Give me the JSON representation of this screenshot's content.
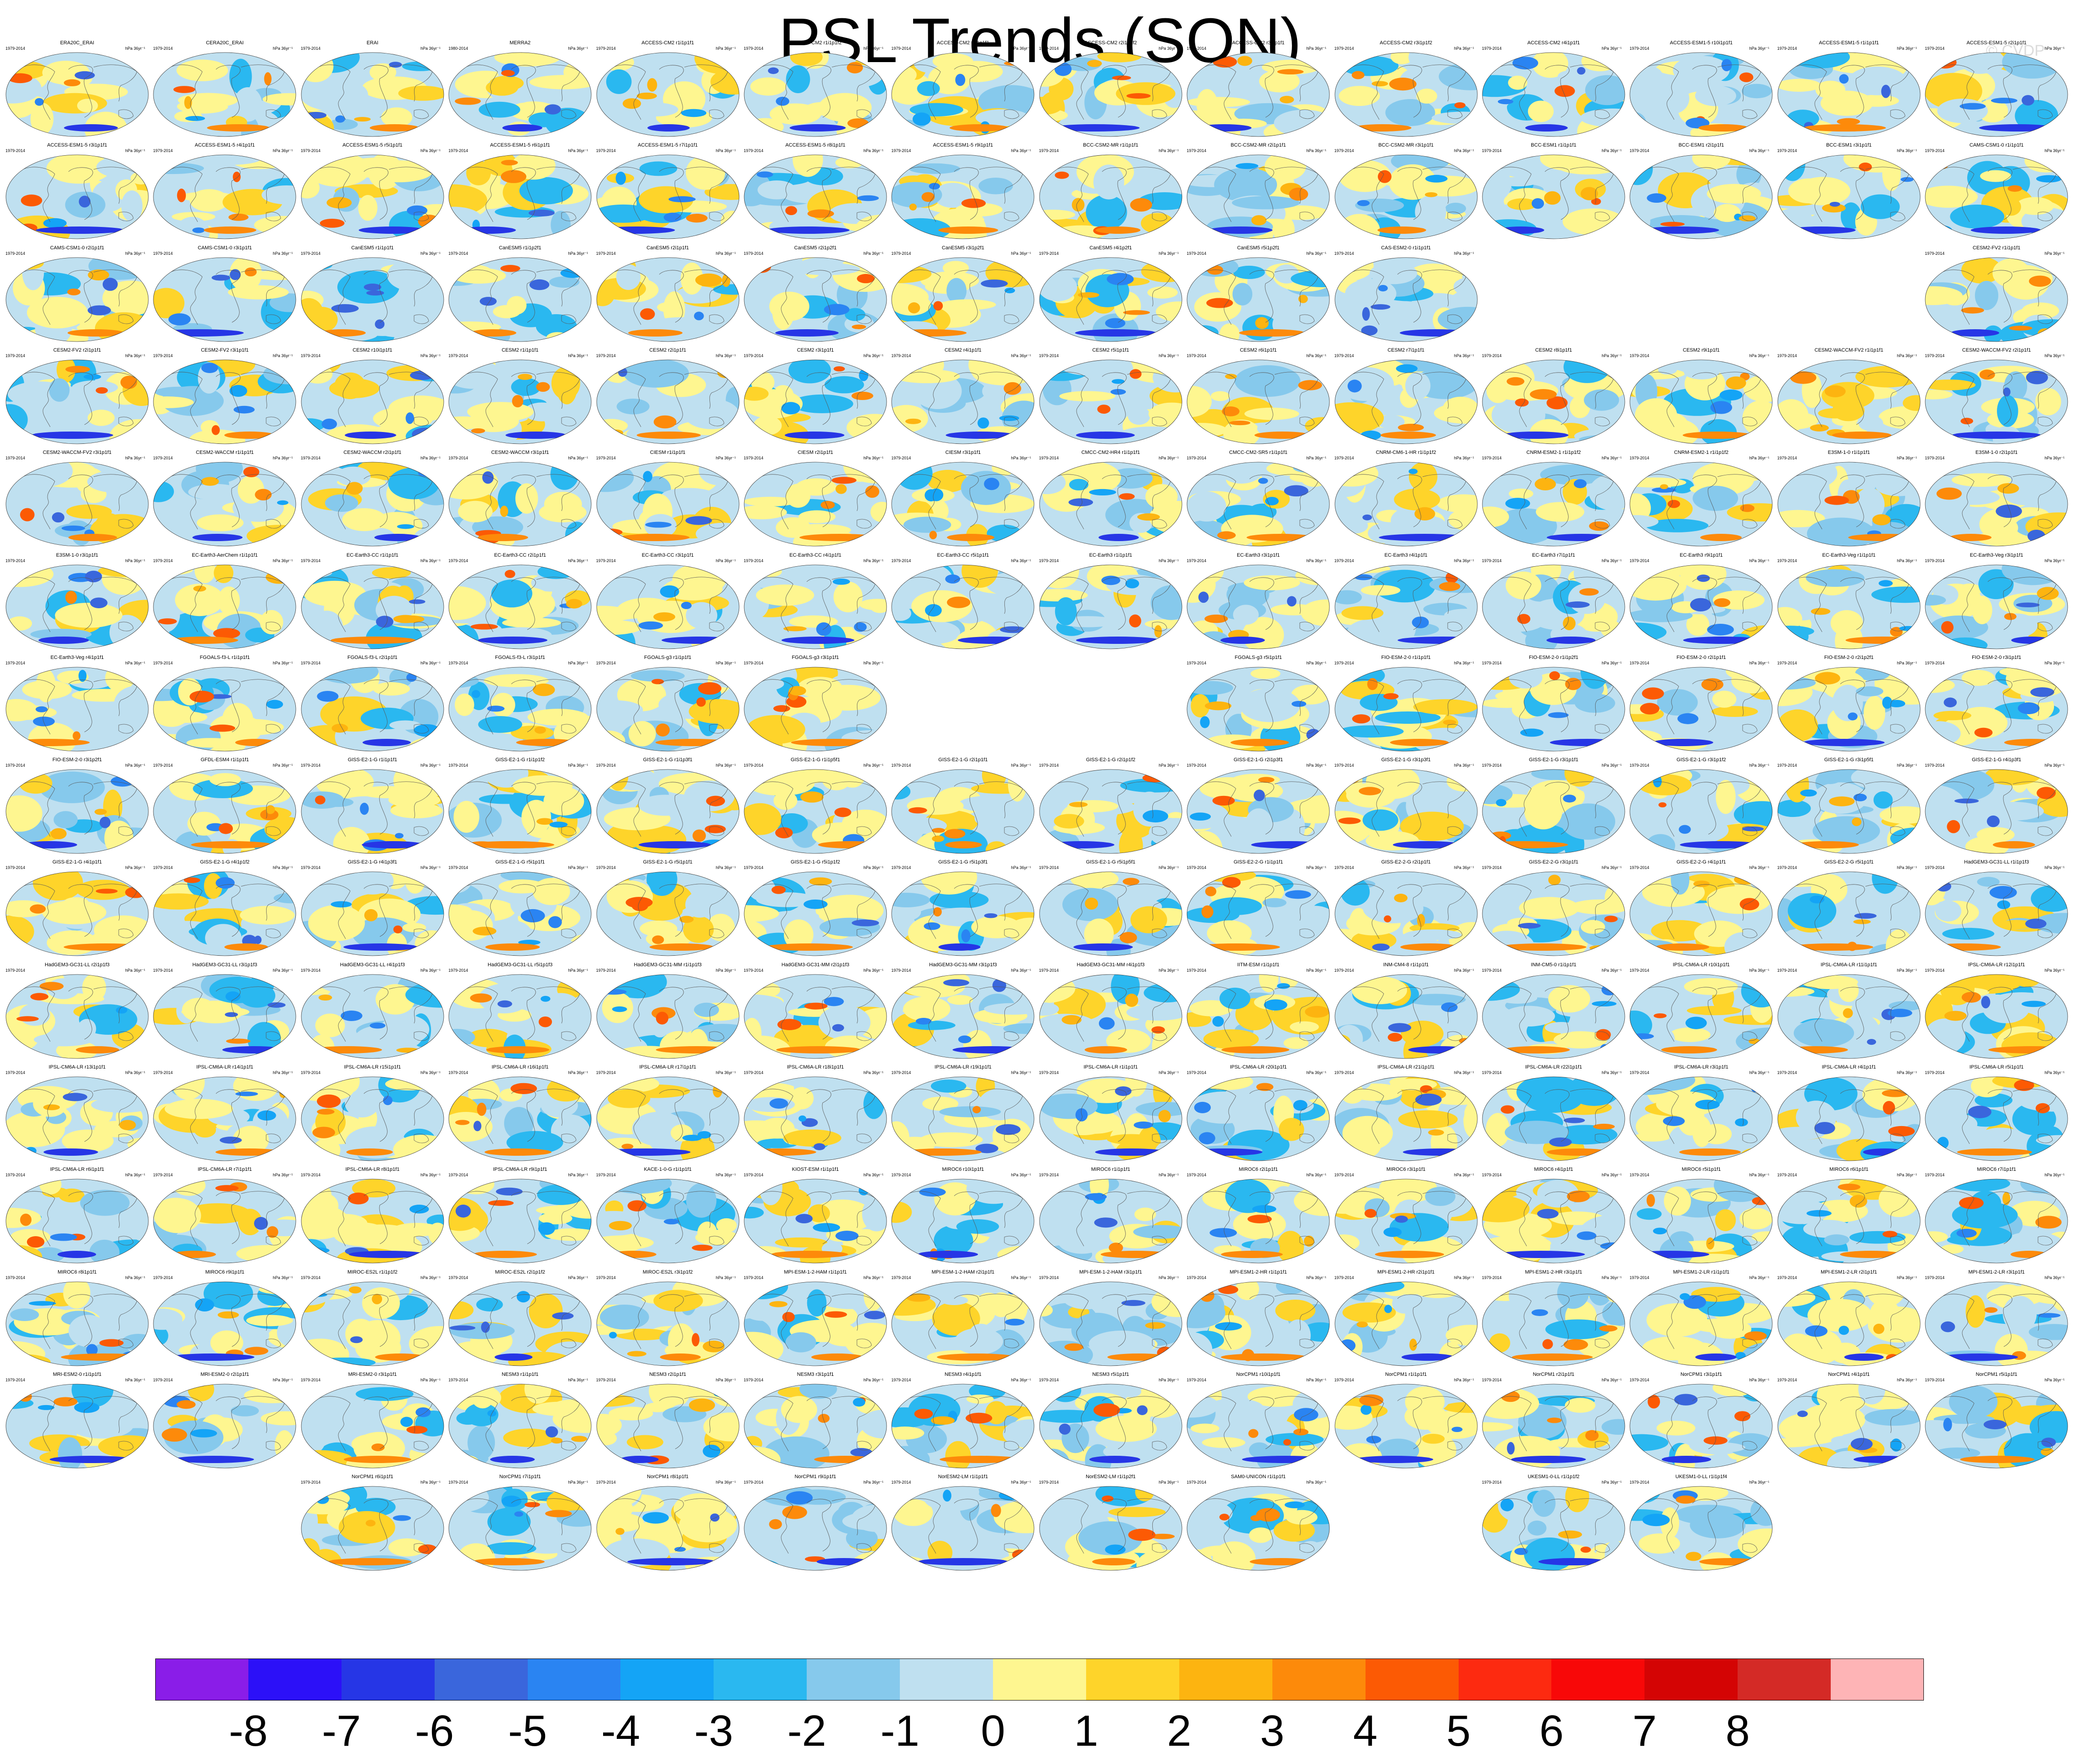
{
  "title": "PSL Trends (SON)",
  "watermark": "© CVDP",
  "units": "hPa 36yr⁻¹",
  "panel_rows": [
    [
      {
        "name": "ERA20C_ERAI",
        "years": "1979-2014"
      },
      {
        "name": "CERA20C_ERAI",
        "years": "1979-2014"
      },
      {
        "name": "ERAI",
        "years": "1979-2014"
      },
      {
        "name": "MERRA2",
        "years": "1980-2014"
      },
      {
        "name": "ACCESS-CM2 r1i1p1f1",
        "years": "1979-2014"
      },
      {
        "name": "ACCESS-CM2 r1i1p1f2",
        "years": "1979-2014"
      },
      {
        "name": "ACCESS-CM2 r2i1p1f1",
        "years": "1979-2014"
      },
      {
        "name": "ACCESS-CM2 r2i1p1f2",
        "years": "1979-2014"
      },
      {
        "name": "ACCESS-CM2 r3i1p1f1",
        "years": "1979-2014"
      },
      {
        "name": "ACCESS-CM2 r3i1p1f2",
        "years": "1979-2014"
      },
      {
        "name": "ACCESS-CM2 r4i1p1f1",
        "years": "1979-2014"
      },
      {
        "name": "ACCESS-ESM1-5 r10i1p1f1",
        "years": "1979-2014"
      },
      {
        "name": "ACCESS-ESM1-5 r1i1p1f1",
        "years": "1979-2014"
      },
      {
        "name": "ACCESS-ESM1-5 r2i1p1f1",
        "years": "1979-2014"
      }
    ],
    [
      {
        "name": "ACCESS-ESM1-5 r3i1p1f1",
        "years": "1979-2014"
      },
      {
        "name": "ACCESS-ESM1-5 r4i1p1f1",
        "years": "1979-2014"
      },
      {
        "name": "ACCESS-ESM1-5 r5i1p1f1",
        "years": "1979-2014"
      },
      {
        "name": "ACCESS-ESM1-5 r6i1p1f1",
        "years": "1979-2014"
      },
      {
        "name": "ACCESS-ESM1-5 r7i1p1f1",
        "years": "1979-2014"
      },
      {
        "name": "ACCESS-ESM1-5 r8i1p1f1",
        "years": "1979-2014"
      },
      {
        "name": "ACCESS-ESM1-5 r9i1p1f1",
        "years": "1979-2014"
      },
      {
        "name": "BCC-CSM2-MR r1i1p1f1",
        "years": "1979-2014"
      },
      {
        "name": "BCC-CSM2-MR r2i1p1f1",
        "years": "1979-2014"
      },
      {
        "name": "BCC-CSM2-MR r3i1p1f1",
        "years": "1979-2014"
      },
      {
        "name": "BCC-ESM1 r1i1p1f1",
        "years": "1979-2014"
      },
      {
        "name": "BCC-ESM1 r2i1p1f1",
        "years": "1979-2014"
      },
      {
        "name": "BCC-ESM1 r3i1p1f1",
        "years": "1979-2014"
      },
      {
        "name": "CAMS-CSM1-0 r1i1p1f1",
        "years": "1979-2014"
      }
    ],
    [
      {
        "name": "CAMS-CSM1-0 r2i1p1f1",
        "years": "1979-2014"
      },
      {
        "name": "CAMS-CSM1-0 r3i1p1f1",
        "years": "1979-2014"
      },
      {
        "name": "CanESM5 r1i1p1f1",
        "years": "1979-2014"
      },
      {
        "name": "CanESM5 r1i1p2f1",
        "years": "1979-2014"
      },
      {
        "name": "CanESM5 r2i1p1f1",
        "years": "1979-2014"
      },
      {
        "name": "CanESM5 r2i1p2f1",
        "years": "1979-2014"
      },
      {
        "name": "CanESM5 r3i1p2f1",
        "years": "1979-2014"
      },
      {
        "name": "CanESM5 r4i1p2f1",
        "years": "1979-2014"
      },
      {
        "name": "CanESM5 r5i1p2f1",
        "years": "1979-2014"
      },
      {
        "name": "CAS-ESM2-0 r1i1p1f1",
        "years": "1979-2014"
      },
      null,
      null,
      null,
      {
        "name": "CESM2-FV2 r1i1p1f1",
        "years": "1979-2014"
      }
    ],
    [
      {
        "name": "CESM2-FV2 r2i1p1f1",
        "years": "1979-2014"
      },
      {
        "name": "CESM2-FV2 r3i1p1f1",
        "years": "1979-2014"
      },
      {
        "name": "CESM2 r10i1p1f1",
        "years": "1979-2014"
      },
      {
        "name": "CESM2 r1i1p1f1",
        "years": "1979-2014"
      },
      {
        "name": "CESM2 r2i1p1f1",
        "years": "1979-2014"
      },
      {
        "name": "CESM2 r3i1p1f1",
        "years": "1979-2014"
      },
      {
        "name": "CESM2 r4i1p1f1",
        "years": "1979-2014"
      },
      {
        "name": "CESM2 r5i1p1f1",
        "years": "1979-2014"
      },
      {
        "name": "CESM2 r6i1p1f1",
        "years": "1979-2014"
      },
      {
        "name": "CESM2 r7i1p1f1",
        "years": "1979-2014"
      },
      {
        "name": "CESM2 r8i1p1f1",
        "years": "1979-2014"
      },
      {
        "name": "CESM2 r9i1p1f1",
        "years": "1979-2014"
      },
      {
        "name": "CESM2-WACCM-FV2 r1i1p1f1",
        "years": "1979-2014"
      },
      {
        "name": "CESM2-WACCM-FV2 r2i1p1f1",
        "years": "1979-2014"
      }
    ],
    [
      {
        "name": "CESM2-WACCM-FV2 r3i1p1f1",
        "years": "1979-2014"
      },
      {
        "name": "CESM2-WACCM r1i1p1f1",
        "years": "1979-2014"
      },
      {
        "name": "CESM2-WACCM r2i1p1f1",
        "years": "1979-2014"
      },
      {
        "name": "CESM2-WACCM r3i1p1f1",
        "years": "1979-2014"
      },
      {
        "name": "CIESM r1i1p1f1",
        "years": "1979-2014"
      },
      {
        "name": "CIESM r2i1p1f1",
        "years": "1979-2014"
      },
      {
        "name": "CIESM r3i1p1f1",
        "years": "1979-2014"
      },
      {
        "name": "CMCC-CM2-HR4 r1i1p1f1",
        "years": "1979-2014"
      },
      {
        "name": "CMCC-CM2-SR5 r1i1p1f1",
        "years": "1979-2014"
      },
      {
        "name": "CNRM-CM6-1-HR r1i1p1f2",
        "years": "1979-2014"
      },
      {
        "name": "CNRM-ESM2-1 r1i1p1f2",
        "years": "1979-2014"
      },
      {
        "name": "CNRM-ESM2-1 r1i1p1f2",
        "years": "1979-2014"
      },
      {
        "name": "E3SM-1-0 r1i1p1f1",
        "years": "1979-2014"
      },
      {
        "name": "E3SM-1-0 r2i1p1f1",
        "years": "1979-2014"
      }
    ],
    [
      {
        "name": "E3SM-1-0 r3i1p1f1",
        "years": "1979-2014"
      },
      {
        "name": "EC-Earth3-AerChem r1i1p1f1",
        "years": "1979-2014"
      },
      {
        "name": "EC-Earth3-CC r1i1p1f1",
        "years": "1979-2014"
      },
      {
        "name": "EC-Earth3-CC r2i1p1f1",
        "years": "1979-2014"
      },
      {
        "name": "EC-Earth3-CC r3i1p1f1",
        "years": "1979-2014"
      },
      {
        "name": "EC-Earth3-CC r4i1p1f1",
        "years": "1979-2014"
      },
      {
        "name": "EC-Earth3-CC r5i1p1f1",
        "years": "1979-2014"
      },
      {
        "name": "EC-Earth3 r1i1p1f1",
        "years": "1979-2014"
      },
      {
        "name": "EC-Earth3 r3i1p1f1",
        "years": "1979-2014"
      },
      {
        "name": "EC-Earth3 r4i1p1f1",
        "years": "1979-2014"
      },
      {
        "name": "EC-Earth3 r7i1p1f1",
        "years": "1979-2014"
      },
      {
        "name": "EC-Earth3 r9i1p1f1",
        "years": "1979-2014"
      },
      {
        "name": "EC-Earth3-Veg r1i1p1f1",
        "years": "1979-2014"
      },
      {
        "name": "EC-Earth3-Veg r3i1p1f1",
        "years": "1979-2014"
      }
    ],
    [
      {
        "name": "EC-Earth3-Veg r4i1p1f1",
        "years": "1979-2014"
      },
      {
        "name": "FGOALS-f3-L r1i1p1f1",
        "years": "1979-2014"
      },
      {
        "name": "FGOALS-f3-L r2i1p1f1",
        "years": "1979-2014"
      },
      {
        "name": "FGOALS-f3-L r3i1p1f1",
        "years": "1979-2014"
      },
      {
        "name": "FGOALS-g3 r1i1p1f1",
        "years": "1979-2014"
      },
      {
        "name": "FGOALS-g3 r3i1p1f1",
        "years": "1979-2014"
      },
      null,
      null,
      {
        "name": "FGOALS-g3 r5i1p1f1",
        "years": "1979-2014"
      },
      {
        "name": "FIO-ESM-2-0 r1i1p1f1",
        "years": "1979-2014"
      },
      {
        "name": "FIO-ESM-2-0 r1i1p2f1",
        "years": "1979-2014"
      },
      {
        "name": "FIO-ESM-2-0 r2i1p1f1",
        "years": "1979-2014"
      },
      {
        "name": "FIO-ESM-2-0 r2i1p2f1",
        "years": "1979-2014"
      },
      {
        "name": "FIO-ESM-2-0 r3i1p1f1",
        "years": "1979-2014"
      }
    ],
    [
      {
        "name": "FIO-ESM-2-0 r3i1p2f1",
        "years": "1979-2014"
      },
      {
        "name": "GFDL-ESM4 r1i1p1f1",
        "years": "1979-2014"
      },
      {
        "name": "GISS-E2-1-G r1i1p1f1",
        "years": "1979-2014"
      },
      {
        "name": "GISS-E2-1-G r1i1p1f2",
        "years": "1979-2014"
      },
      {
        "name": "GISS-E2-1-G r1i1p3f1",
        "years": "1979-2014"
      },
      {
        "name": "GISS-E2-1-G r1i1p5f1",
        "years": "1979-2014"
      },
      {
        "name": "GISS-E2-1-G r2i1p1f1",
        "years": "1979-2014"
      },
      {
        "name": "GISS-E2-1-G r2i1p1f2",
        "years": "1979-2014"
      },
      {
        "name": "GISS-E2-1-G r2i1p3f1",
        "years": "1979-2014"
      },
      {
        "name": "GISS-E2-1-G r3i1p3f1",
        "years": "1979-2014"
      },
      {
        "name": "GISS-E2-1-G r3i1p1f1",
        "years": "1979-2014"
      },
      {
        "name": "GISS-E2-1-G r3i1p1f2",
        "years": "1979-2014"
      },
      {
        "name": "GISS-E2-1-G r3i1p5f1",
        "years": "1979-2014"
      },
      {
        "name": "GISS-E2-1-G r4i1p3f1",
        "years": "1979-2014"
      }
    ],
    [
      {
        "name": "GISS-E2-1-G r4i1p1f1",
        "years": "1979-2014"
      },
      {
        "name": "GISS-E2-1-G r4i1p1f2",
        "years": "1979-2014"
      },
      {
        "name": "GISS-E2-1-G r4i1p3f1",
        "years": "1979-2014"
      },
      {
        "name": "GISS-E2-1-G r5i1p1f1",
        "years": "1979-2014"
      },
      {
        "name": "GISS-E2-1-G r5i1p1f1",
        "years": "1979-2014"
      },
      {
        "name": "GISS-E2-1-G r5i1p1f2",
        "years": "1979-2014"
      },
      {
        "name": "GISS-E2-1-G r5i1p3f1",
        "years": "1979-2014"
      },
      {
        "name": "GISS-E2-1-G r5i1p5f1",
        "years": "1979-2014"
      },
      {
        "name": "GISS-E2-2-G r1i1p1f1",
        "years": "1979-2014"
      },
      {
        "name": "GISS-E2-2-G r2i1p1f1",
        "years": "1979-2014"
      },
      {
        "name": "GISS-E2-2-G r3i1p1f1",
        "years": "1979-2014"
      },
      {
        "name": "GISS-E2-2-G r4i1p1f1",
        "years": "1979-2014"
      },
      {
        "name": "GISS-E2-2-G r5i1p1f1",
        "years": "1979-2014"
      },
      {
        "name": "HadGEM3-GC31-LL r1i1p1f3",
        "years": "1979-2014"
      }
    ],
    [
      {
        "name": "HadGEM3-GC31-LL r2i1p1f3",
        "years": "1979-2014"
      },
      {
        "name": "HadGEM3-GC31-LL r3i1p1f3",
        "years": "1979-2014"
      },
      {
        "name": "HadGEM3-GC31-LL r4i1p1f3",
        "years": "1979-2014"
      },
      {
        "name": "HadGEM3-GC31-LL r5i1p1f3",
        "years": "1979-2014"
      },
      {
        "name": "HadGEM3-GC31-MM r1i1p1f3",
        "years": "1979-2014"
      },
      {
        "name": "HadGEM3-GC31-MM r2i1p1f3",
        "years": "1979-2014"
      },
      {
        "name": "HadGEM3-GC31-MM r3i1p1f3",
        "years": "1979-2014"
      },
      {
        "name": "HadGEM3-GC31-MM r4i1p1f3",
        "years": "1979-2014"
      },
      {
        "name": "IITM-ESM r1i1p1f1",
        "years": "1979-2014"
      },
      {
        "name": "INM-CM4-8 r1i1p1f1",
        "years": "1979-2014"
      },
      {
        "name": "INM-CM5-0 r1i1p1f1",
        "years": "1979-2014"
      },
      {
        "name": "IPSL-CM6A-LR r10i1p1f1",
        "years": "1979-2014"
      },
      {
        "name": "IPSL-CM6A-LR r11i1p1f1",
        "years": "1979-2014"
      },
      {
        "name": "IPSL-CM6A-LR r12i1p1f1",
        "years": "1979-2014"
      }
    ],
    [
      {
        "name": "IPSL-CM6A-LR r13i1p1f1",
        "years": "1979-2014"
      },
      {
        "name": "IPSL-CM6A-LR r14i1p1f1",
        "years": "1979-2014"
      },
      {
        "name": "IPSL-CM6A-LR r15i1p1f1",
        "years": "1979-2014"
      },
      {
        "name": "IPSL-CM6A-LR r16i1p1f1",
        "years": "1979-2014"
      },
      {
        "name": "IPSL-CM6A-LR r17i1p1f1",
        "years": "1979-2014"
      },
      {
        "name": "IPSL-CM6A-LR r18i1p1f1",
        "years": "1979-2014"
      },
      {
        "name": "IPSL-CM6A-LR r19i1p1f1",
        "years": "1979-2014"
      },
      {
        "name": "IPSL-CM6A-LR r1i1p1f1",
        "years": "1979-2014"
      },
      {
        "name": "IPSL-CM6A-LR r20i1p1f1",
        "years": "1979-2014"
      },
      {
        "name": "IPSL-CM6A-LR r21i1p1f1",
        "years": "1979-2014"
      },
      {
        "name": "IPSL-CM6A-LR r22i1p1f1",
        "years": "1979-2014"
      },
      {
        "name": "IPSL-CM6A-LR r3i1p1f1",
        "years": "1979-2014"
      },
      {
        "name": "IPSL-CM6A-LR r4i1p1f1",
        "years": "1979-2014"
      },
      {
        "name": "IPSL-CM6A-LR r5i1p1f1",
        "years": "1979-2014"
      }
    ],
    [
      {
        "name": "IPSL-CM6A-LR r6i1p1f1",
        "years": "1979-2014"
      },
      {
        "name": "IPSL-CM6A-LR r7i1p1f1",
        "years": "1979-2014"
      },
      {
        "name": "IPSL-CM6A-LR r8i1p1f1",
        "years": "1979-2014"
      },
      {
        "name": "IPSL-CM6A-LR r9i1p1f1",
        "years": "1979-2014"
      },
      {
        "name": "KACE-1-0-G r1i1p1f1",
        "years": "1979-2014"
      },
      {
        "name": "KIOST-ESM r1i1p1f1",
        "years": "1979-2014"
      },
      {
        "name": "MIROC6 r10i1p1f1",
        "years": "1979-2014"
      },
      {
        "name": "MIROC6 r1i1p1f1",
        "years": "1979-2014"
      },
      {
        "name": "MIROC6 r2i1p1f1",
        "years": "1979-2014"
      },
      {
        "name": "MIROC6 r3i1p1f1",
        "years": "1979-2014"
      },
      {
        "name": "MIROC6 r4i1p1f1",
        "years": "1979-2014"
      },
      {
        "name": "MIROC6 r5i1p1f1",
        "years": "1979-2014"
      },
      {
        "name": "MIROC6 r6i1p1f1",
        "years": "1979-2014"
      },
      {
        "name": "MIROC6 r7i1p1f1",
        "years": "1979-2014"
      }
    ],
    [
      {
        "name": "MIROC6 r8i1p1f1",
        "years": "1979-2014"
      },
      {
        "name": "MIROC6 r9i1p1f1",
        "years": "1979-2014"
      },
      {
        "name": "MIROC-ES2L r1i1p1f2",
        "years": "1979-2014"
      },
      {
        "name": "MIROC-ES2L r2i1p1f2",
        "years": "1979-2014"
      },
      {
        "name": "MIROC-ES2L r3i1p1f2",
        "years": "1979-2014"
      },
      {
        "name": "MPI-ESM-1-2-HAM r1i1p1f1",
        "years": "1979-2014"
      },
      {
        "name": "MPI-ESM-1-2-HAM r2i1p1f1",
        "years": "1979-2014"
      },
      {
        "name": "MPI-ESM-1-2-HAM r3i1p1f1",
        "years": "1979-2014"
      },
      {
        "name": "MPI-ESM1-2-HR r1i1p1f1",
        "years": "1979-2014"
      },
      {
        "name": "MPI-ESM1-2-HR r2i1p1f1",
        "years": "1979-2014"
      },
      {
        "name": "MPI-ESM1-2-HR r3i1p1f1",
        "years": "1979-2014"
      },
      {
        "name": "MPI-ESM1-2-LR r1i1p1f1",
        "years": "1979-2014"
      },
      {
        "name": "MPI-ESM1-2-LR r2i1p1f1",
        "years": "1979-2014"
      },
      {
        "name": "MPI-ESM1-2-LR r3i1p1f1",
        "years": "1979-2014"
      }
    ],
    [
      {
        "name": "MRI-ESM2-0 r1i1p1f1",
        "years": "1979-2014"
      },
      {
        "name": "MRI-ESM2-0 r2i1p1f1",
        "years": "1979-2014"
      },
      {
        "name": "MRI-ESM2-0 r3i1p1f1",
        "years": "1979-2014"
      },
      {
        "name": "NESM3 r1i1p1f1",
        "years": "1979-2014"
      },
      {
        "name": "NESM3 r2i1p1f1",
        "years": "1979-2014"
      },
      {
        "name": "NESM3 r3i1p1f1",
        "years": "1979-2014"
      },
      {
        "name": "NESM3 r4i1p1f1",
        "years": "1979-2014"
      },
      {
        "name": "NESM3 r5i1p1f1",
        "years": "1979-2014"
      },
      {
        "name": "NorCPM1 r10i1p1f1",
        "years": "1979-2014"
      },
      {
        "name": "NorCPM1 r1i1p1f1",
        "years": "1979-2014"
      },
      {
        "name": "NorCPM1 r2i1p1f1",
        "years": "1979-2014"
      },
      {
        "name": "NorCPM1 r3i1p1f1",
        "years": "1979-2014"
      },
      {
        "name": "NorCPM1 r4i1p1f1",
        "years": "1979-2014"
      },
      {
        "name": "NorCPM1 r5i1p1f1",
        "years": "1979-2014"
      }
    ],
    [
      null,
      null,
      {
        "name": "NorCPM1 r6i1p1f1",
        "years": "1979-2014"
      },
      {
        "name": "NorCPM1 r7i1p1f1",
        "years": "1979-2014"
      },
      {
        "name": "NorCPM1 r8i1p1f1",
        "years": "1979-2014"
      },
      {
        "name": "NorCPM1 r9i1p1f1",
        "years": "1979-2014"
      },
      {
        "name": "NorESM2-LM r1i1p1f1",
        "years": "1979-2014"
      },
      {
        "name": "NorESM2-LM r1i1p2f1",
        "years": "1979-2014"
      },
      {
        "name": "SAM0-UNICON r1i1p1f1",
        "years": "1979-2014"
      },
      null,
      {
        "name": "UKESM1-0-LL r1i1p1f2",
        "years": "1979-2014"
      },
      {
        "name": "UKESM1-0-LL r1i1p1f4",
        "years": "1979-2014"
      },
      null,
      null
    ]
  ],
  "colorbar": {
    "colors": [
      "#8a1de8",
      "#2c10f8",
      "#2636e6",
      "#3a66dc",
      "#2a84f2",
      "#14a4f6",
      "#2ab8f0",
      "#86c9ec",
      "#bfe0f0",
      "#fef690",
      "#fed42a",
      "#fdb410",
      "#fd8a0a",
      "#fc5a04",
      "#fd2a10",
      "#f80808",
      "#d40404",
      "#d42a26",
      "#feb4b6"
    ],
    "labels": [
      "-8",
      "-7",
      "-6",
      "-5",
      "-4",
      "-3",
      "-2",
      "-1",
      "0",
      "1",
      "2",
      "3",
      "4",
      "5",
      "6",
      "7",
      "8"
    ]
  }
}
